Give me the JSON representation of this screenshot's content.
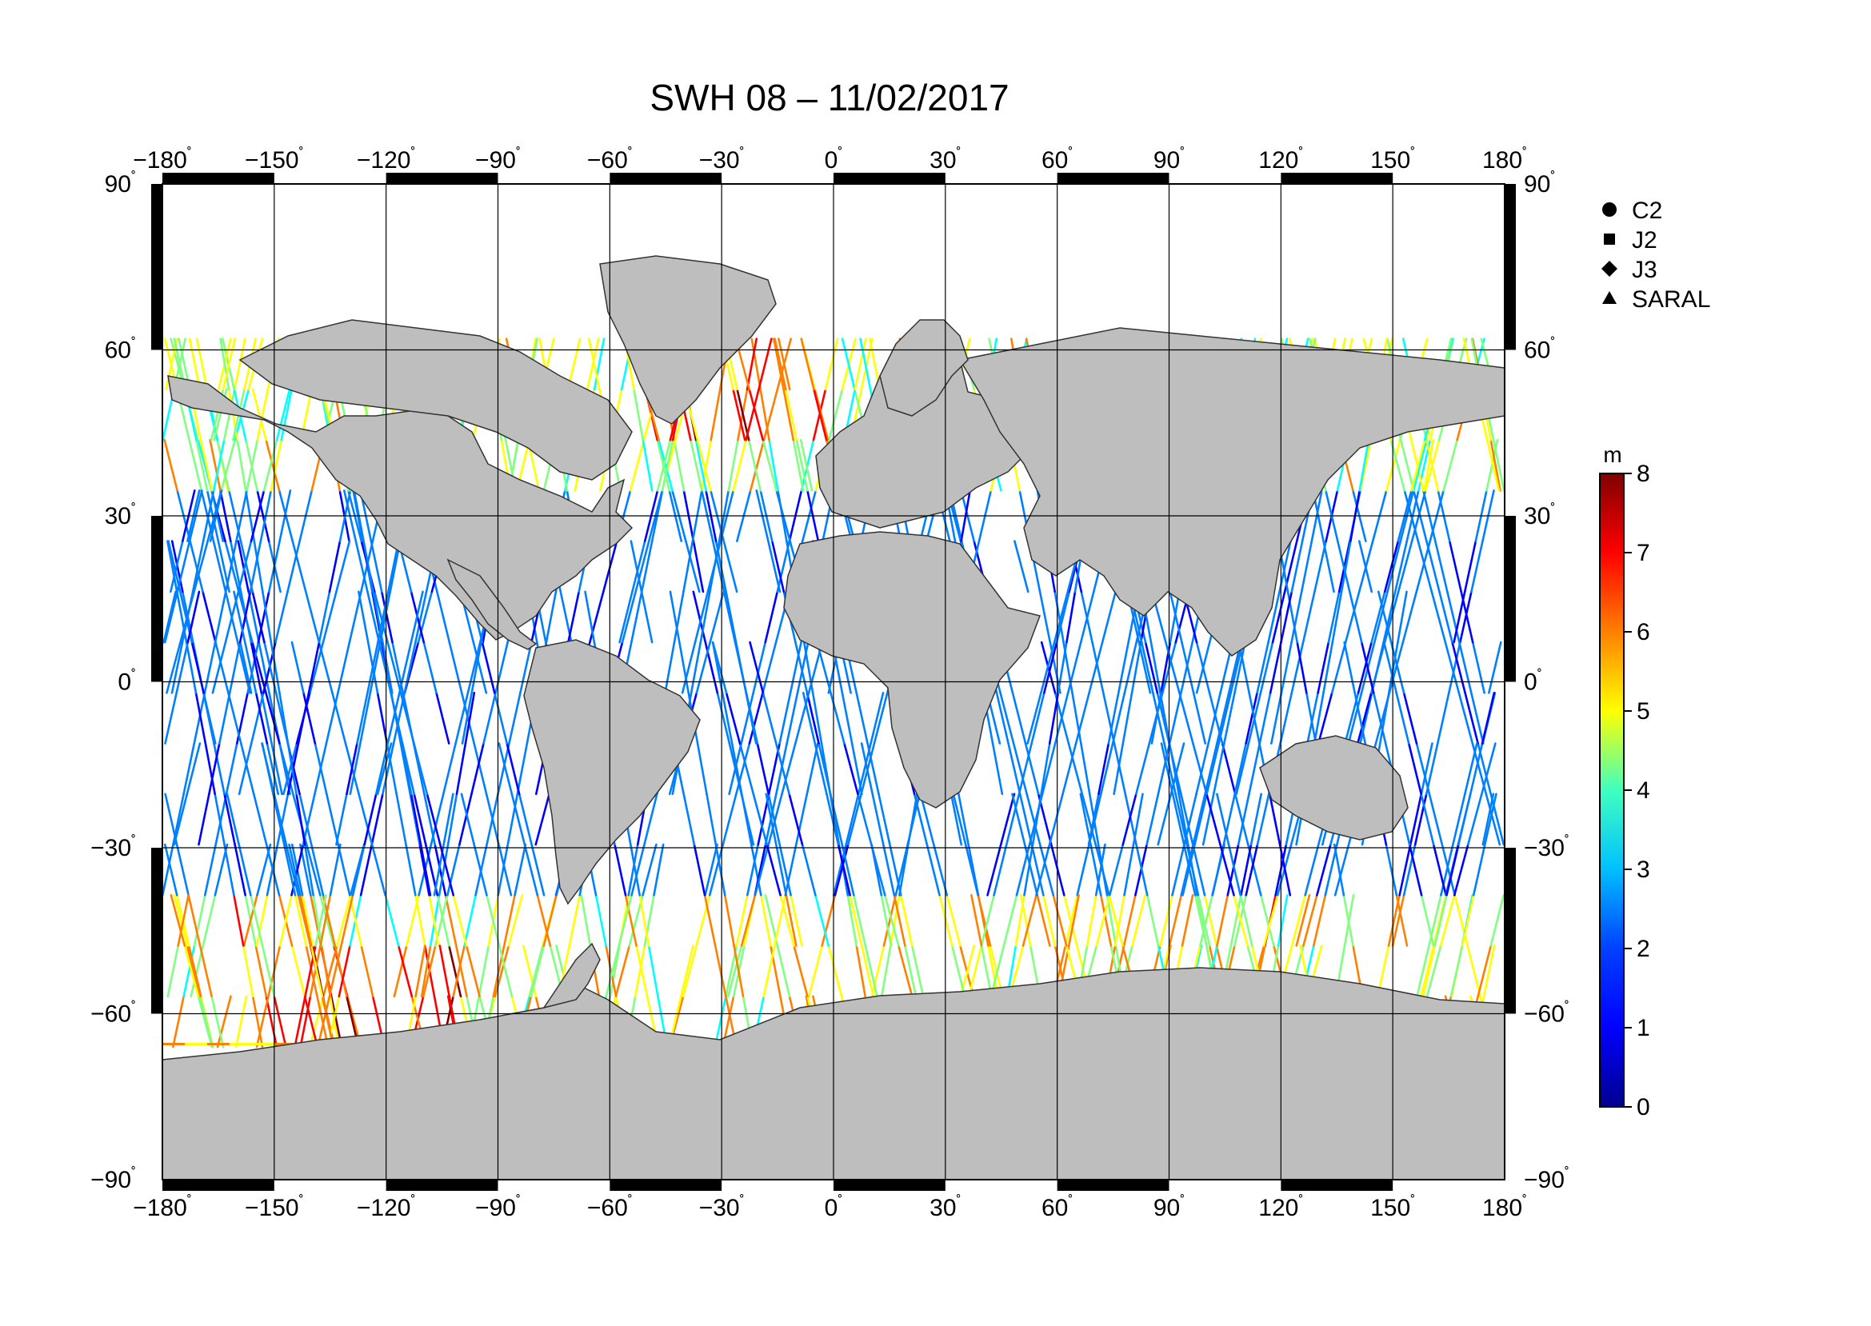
{
  "title": "SWH 08 – 11/02/2017",
  "map": {
    "lon_ticks": [
      "−180",
      "−150",
      "−120",
      "−90",
      "−60",
      "−30",
      "0",
      "30",
      "60",
      "90",
      "120",
      "150",
      "180"
    ],
    "lat_ticks": [
      "90",
      "60",
      "30",
      "0",
      "−30",
      "−60",
      "−90"
    ],
    "degree_symbol": "˚",
    "land_color": "#bebebe",
    "ocean_color": "#ffffff",
    "grid_color": "#000000"
  },
  "legend": {
    "items": [
      {
        "label": "C2",
        "marker": "circle"
      },
      {
        "label": "J2",
        "marker": "square"
      },
      {
        "label": "J3",
        "marker": "diamond"
      },
      {
        "label": "SARAL",
        "marker": "triangle"
      }
    ]
  },
  "colorbar": {
    "unit": "m",
    "min": 0,
    "max": 8,
    "ticks": [
      "0",
      "1",
      "2",
      "3",
      "4",
      "5",
      "6",
      "7",
      "8"
    ],
    "colors": [
      "#00008f",
      "#0000ff",
      "#0080ff",
      "#00ffff",
      "#80ff80",
      "#ffff00",
      "#ff8000",
      "#ff0000",
      "#800000"
    ]
  }
}
